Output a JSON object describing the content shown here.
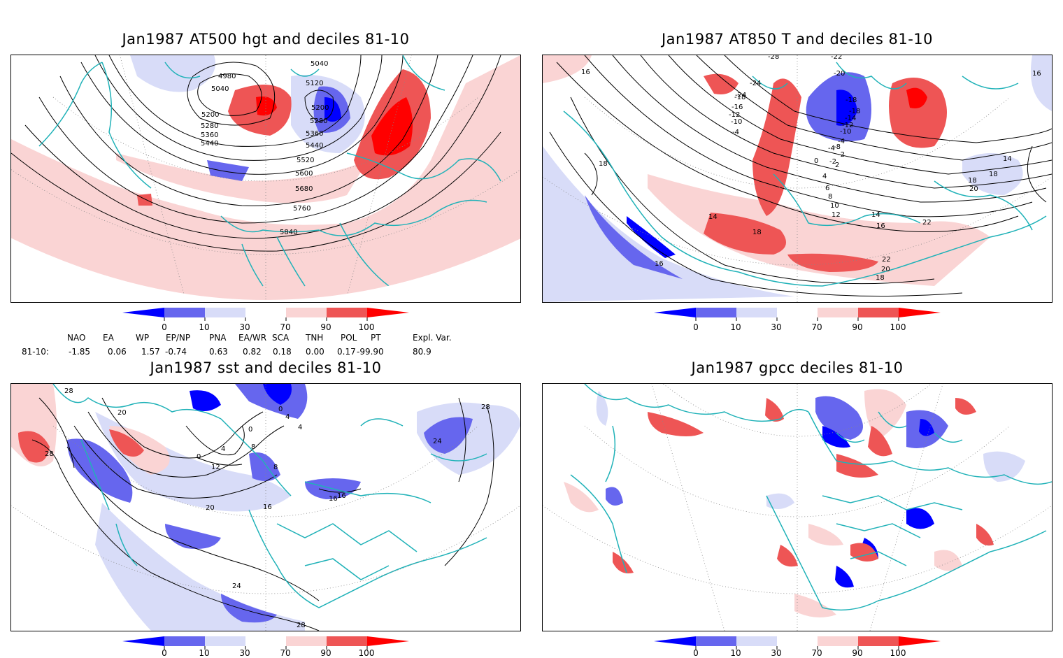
{
  "panels": [
    {
      "id": "hgt",
      "title": "Jan1987 AT500 hgt and deciles 81-10",
      "contour_labels": [
        "4980",
        "5040",
        "5040",
        "5120",
        "5200",
        "5200",
        "5280",
        "5280",
        "5360",
        "5360",
        "5440",
        "5440",
        "5520",
        "5600",
        "5680",
        "5760",
        "5840"
      ]
    },
    {
      "id": "t850",
      "title": "Jan1987 AT850 T and deciles 81-10",
      "contour_labels": [
        "16",
        "16",
        "-28",
        "-22",
        "-24",
        "-24",
        "-20",
        "-18",
        "-18",
        "-16",
        "-18",
        "-14",
        "-12",
        "-12",
        "-10",
        "-10",
        "-4",
        "-4",
        "-8",
        "-2",
        "-2",
        "0",
        "2",
        "-4",
        "4",
        "6",
        "8",
        "10",
        "12",
        "14",
        "14",
        "16",
        "18",
        "18",
        "18",
        "20",
        "22",
        "22",
        "20",
        "18",
        "16",
        "14",
        "18"
      ]
    },
    {
      "id": "sst",
      "title": "Jan1987 sst and deciles 81-10",
      "contour_labels": [
        "28",
        "20",
        "28",
        "0",
        "4",
        "0",
        "4",
        "8",
        "12",
        "16",
        "20",
        "24",
        "28",
        "24",
        "28",
        "16",
        "16",
        "4",
        "0",
        "8"
      ]
    },
    {
      "id": "gpcc",
      "title": "Jan1987 gpcc deciles 81-10",
      "contour_labels": []
    }
  ],
  "colorbar": {
    "ticks": [
      "0",
      "10",
      "30",
      "70",
      "90",
      "100"
    ],
    "colors": [
      "#0000ff",
      "#6666ee",
      "#d8dcf8",
      "#ffffff",
      "#fad4d4",
      "#ee5555",
      "#ff0000"
    ]
  },
  "teleconnections": {
    "row_label": "81-10:",
    "indices": [
      "NAO",
      "EA",
      "WP",
      "EP/NP",
      "PNA",
      "EA/WR",
      "SCA",
      "TNH",
      "POL",
      "PT",
      "Expl. Var."
    ],
    "values": [
      "-1.85",
      "0.06",
      "1.57",
      "-0.74",
      "0.63",
      "0.82",
      "0.18",
      "0.00",
      "0.17",
      "-99.90",
      "80.9"
    ]
  },
  "colors": {
    "coast": "#20b2b8",
    "contour": "#000000",
    "grid": "#888888"
  }
}
